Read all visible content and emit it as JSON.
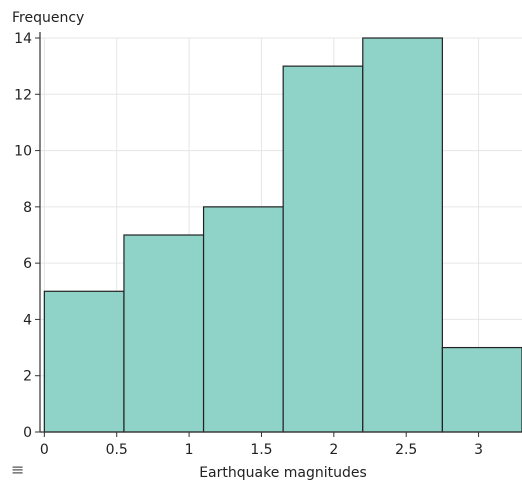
{
  "chart_data": {
    "type": "bar",
    "title": "",
    "ylabel": "Frequency",
    "xlabel": "Earthquake magnitudes",
    "bin_edges": [
      0,
      0.55,
      1.1,
      1.65,
      2.2,
      2.75,
      3.3
    ],
    "values": [
      5,
      7,
      8,
      13,
      14,
      3
    ],
    "x_ticks": [
      0,
      0.5,
      1,
      1.5,
      2,
      2.5,
      3
    ],
    "x_tick_labels": [
      "0",
      "0.5",
      "1",
      "1.5",
      "2",
      "2.5",
      "3"
    ],
    "y_ticks": [
      0,
      2,
      4,
      6,
      8,
      10,
      12,
      14
    ],
    "y_tick_labels": [
      "0",
      "2",
      "4",
      "6",
      "8",
      "10",
      "12",
      "14"
    ],
    "xlim": [
      -0.03,
      3.3
    ],
    "ylim": [
      0,
      14
    ],
    "grid": true,
    "colors": {
      "bar_fill": "#8fd3c8",
      "bar_stroke": "#222222",
      "grid": "#e6e6e6",
      "axis": "#333333"
    }
  },
  "menu": {
    "icon": "menu-icon",
    "glyph": "≡"
  }
}
